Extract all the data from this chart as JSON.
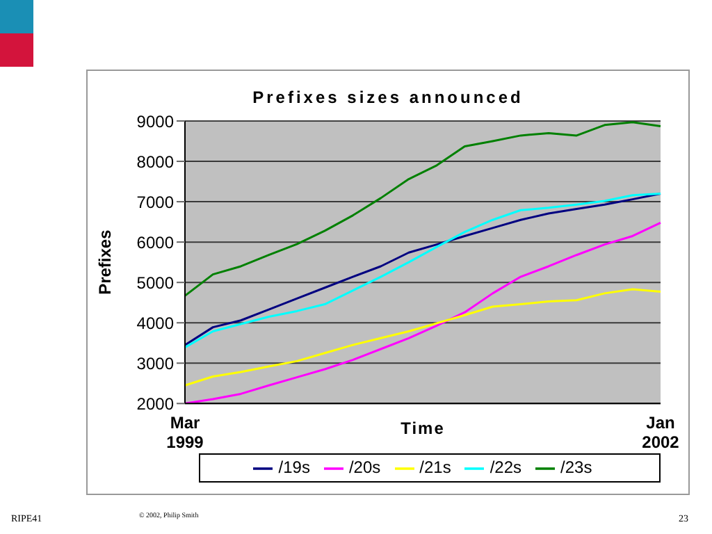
{
  "chart_data": {
    "type": "line",
    "title": "Prefixes sizes announced",
    "xlabel": "Time",
    "ylabel": "Prefixes",
    "categories": [
      "Mar 1999",
      null,
      null,
      null,
      null,
      null,
      null,
      null,
      null,
      null,
      null,
      null,
      null,
      null,
      null,
      null,
      null,
      "Jan 2002"
    ],
    "series": [
      {
        "name": "/19s",
        "color": "#000080",
        "values": [
          3450,
          3890,
          4060,
          4330,
          4600,
          4870,
          5140,
          5400,
          5740,
          5940,
          6150,
          6350,
          6550,
          6710,
          6820,
          6930,
          7060,
          7200
        ]
      },
      {
        "name": "/20s",
        "color": "#ff00ff",
        "values": [
          2000,
          2110,
          2240,
          2450,
          2650,
          2850,
          3080,
          3350,
          3620,
          3930,
          4260,
          4730,
          5140,
          5400,
          5680,
          5940,
          6150,
          6480
        ]
      },
      {
        "name": "/21s",
        "color": "#ffff00",
        "values": [
          2450,
          2670,
          2780,
          2920,
          3050,
          3250,
          3450,
          3620,
          3790,
          3990,
          4190,
          4400,
          4460,
          4530,
          4560,
          4730,
          4830,
          4770
        ]
      },
      {
        "name": "/22s",
        "color": "#00ffff",
        "values": [
          3390,
          3790,
          3970,
          4150,
          4290,
          4460,
          4800,
          5140,
          5500,
          5880,
          6250,
          6550,
          6790,
          6850,
          6930,
          7020,
          7160,
          7200
        ]
      },
      {
        "name": "/23s",
        "color": "#008000",
        "values": [
          4670,
          5200,
          5400,
          5680,
          5950,
          6280,
          6660,
          7090,
          7560,
          7900,
          8370,
          8500,
          8640,
          8700,
          8640,
          8900,
          8970,
          8870
        ]
      }
    ],
    "ylim": [
      2000,
      9000
    ],
    "yticks": [
      2000,
      3000,
      4000,
      5000,
      6000,
      7000,
      8000,
      9000
    ],
    "grid": "y",
    "legend": "bottom",
    "marker": "none",
    "line_style": "solid",
    "annotations": [
      "RIPE41",
      "© 2002, Philip Smith",
      "23"
    ]
  }
}
